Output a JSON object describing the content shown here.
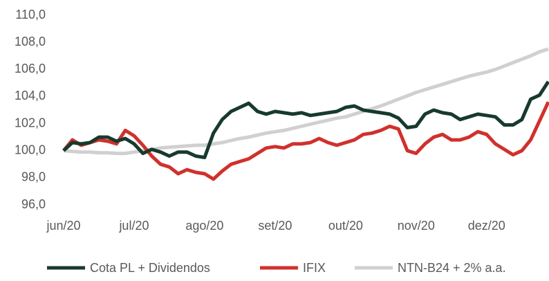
{
  "chart_data": {
    "type": "line",
    "categories": [
      "jun/20",
      null,
      null,
      null,
      null,
      null,
      null,
      null,
      "jul/20",
      null,
      null,
      null,
      null,
      null,
      null,
      null,
      "ago/20",
      null,
      null,
      null,
      null,
      null,
      null,
      null,
      "set/20",
      null,
      null,
      null,
      null,
      null,
      null,
      null,
      "out/20",
      null,
      null,
      null,
      null,
      null,
      null,
      null,
      "nov/20",
      null,
      null,
      null,
      null,
      null,
      null,
      null,
      "dez/20",
      null,
      null,
      null,
      null,
      null,
      null,
      null
    ],
    "series": [
      {
        "name": "Cota PL + Dividendos",
        "color": "#173a2c",
        "values": [
          100.0,
          100.6,
          100.5,
          100.6,
          101.0,
          101.0,
          100.7,
          100.9,
          100.5,
          99.8,
          100.1,
          99.9,
          99.6,
          99.9,
          99.9,
          99.6,
          99.5,
          101.3,
          102.3,
          102.9,
          103.2,
          103.5,
          102.9,
          102.7,
          102.9,
          102.8,
          102.7,
          102.8,
          102.6,
          102.7,
          102.8,
          102.9,
          103.2,
          103.3,
          103.0,
          102.9,
          102.8,
          102.7,
          102.4,
          101.7,
          101.8,
          102.7,
          103.0,
          102.8,
          102.7,
          102.3,
          102.5,
          102.7,
          102.6,
          102.5,
          101.9,
          101.9,
          102.3,
          103.8,
          104.1,
          105.1
        ]
      },
      {
        "name": "IFIX",
        "color": "#d0312d",
        "values": [
          100.0,
          100.8,
          100.4,
          100.6,
          100.8,
          100.7,
          100.5,
          101.5,
          101.1,
          100.4,
          99.6,
          99.0,
          98.8,
          98.3,
          98.6,
          98.4,
          98.3,
          97.9,
          98.5,
          99.0,
          99.2,
          99.4,
          99.8,
          100.2,
          100.3,
          100.2,
          100.5,
          100.5,
          100.6,
          100.9,
          100.6,
          100.4,
          100.6,
          100.8,
          101.2,
          101.3,
          101.5,
          101.8,
          101.6,
          100.0,
          99.8,
          100.5,
          101.0,
          101.2,
          100.8,
          100.8,
          101.0,
          101.4,
          101.2,
          100.5,
          100.1,
          99.7,
          100.0,
          100.8,
          102.2,
          103.6
        ]
      },
      {
        "name": "NTN-B24 + 2% a.a.",
        "color": "#d0d0d0",
        "values": [
          100.0,
          99.95,
          99.9,
          99.9,
          99.85,
          99.85,
          99.8,
          99.8,
          99.9,
          100.0,
          100.1,
          100.2,
          100.25,
          100.3,
          100.35,
          100.4,
          100.4,
          100.5,
          100.6,
          100.75,
          100.9,
          101.0,
          101.15,
          101.3,
          101.4,
          101.5,
          101.65,
          101.8,
          101.95,
          102.1,
          102.25,
          102.4,
          102.5,
          102.7,
          102.9,
          103.1,
          103.3,
          103.55,
          103.8,
          104.05,
          104.3,
          104.5,
          104.7,
          104.9,
          105.1,
          105.3,
          105.5,
          105.65,
          105.8,
          106.0,
          106.25,
          106.5,
          106.75,
          107.0,
          107.3,
          107.5
        ]
      }
    ],
    "ylim": [
      96,
      110
    ],
    "yticks": [
      {
        "value": 96,
        "label": "96,0"
      },
      {
        "value": 98,
        "label": "98,0"
      },
      {
        "value": 100,
        "label": "100,0"
      },
      {
        "value": 102,
        "label": "102,0"
      },
      {
        "value": 104,
        "label": "104,0"
      },
      {
        "value": 106,
        "label": "106,0"
      },
      {
        "value": 108,
        "label": "108,0"
      },
      {
        "value": 110,
        "label": "110,0"
      }
    ],
    "grid": false,
    "legend": "bottom"
  }
}
